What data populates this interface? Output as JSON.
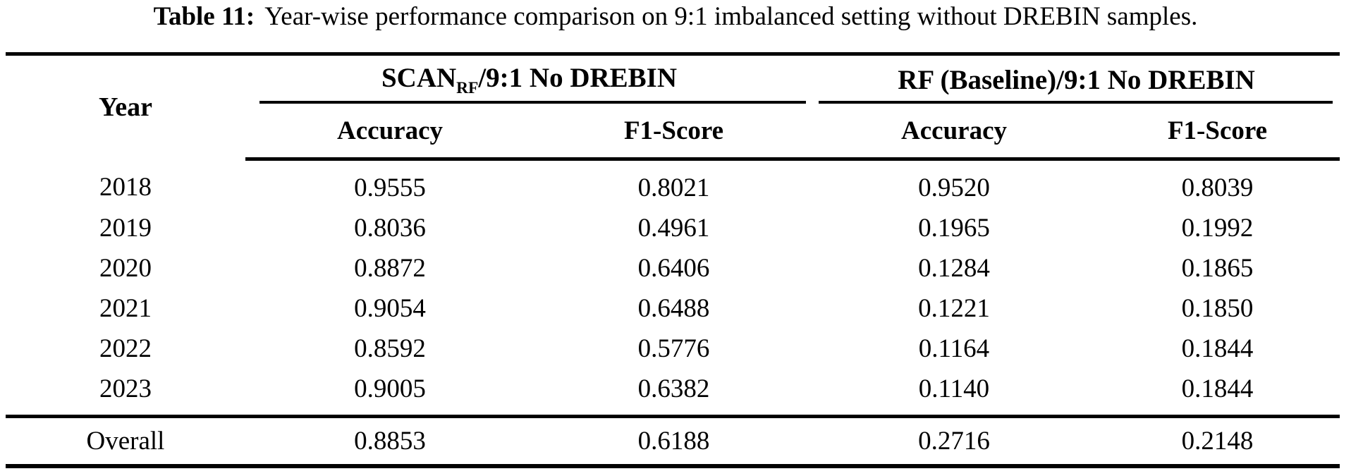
{
  "colors": {
    "text": "#000000",
    "background": "#ffffff",
    "rule": "#000000"
  },
  "caption": {
    "label": "Table 11:",
    "text": "Year-wise performance comparison on 9:1 imbalanced setting without DREBIN samples."
  },
  "table": {
    "year_header": "Year",
    "group1": {
      "prefix": "SCAN",
      "subscript": "RF",
      "suffix": "/9:1 No DREBIN"
    },
    "group2": {
      "label": "RF (Baseline)/9:1 No DREBIN"
    },
    "subheaders": [
      "Accuracy",
      "F1-Score",
      "Accuracy",
      "F1-Score"
    ],
    "rows": [
      {
        "year": "2018",
        "values": [
          "0.9555",
          "0.8021",
          "0.9520",
          "0.8039"
        ]
      },
      {
        "year": "2019",
        "values": [
          "0.8036",
          "0.4961",
          "0.1965",
          "0.1992"
        ]
      },
      {
        "year": "2020",
        "values": [
          "0.8872",
          "0.6406",
          "0.1284",
          "0.1865"
        ]
      },
      {
        "year": "2021",
        "values": [
          "0.9054",
          "0.6488",
          "0.1221",
          "0.1850"
        ]
      },
      {
        "year": "2022",
        "values": [
          "0.8592",
          "0.5776",
          "0.1164",
          "0.1844"
        ]
      },
      {
        "year": "2023",
        "values": [
          "0.9005",
          "0.6382",
          "0.1140",
          "0.1844"
        ]
      }
    ],
    "overall": {
      "label": "Overall",
      "values": [
        "0.8853",
        "0.6188",
        "0.2716",
        "0.2148"
      ]
    }
  },
  "chart_data": {
    "type": "table",
    "title": "Table 11: Year-wise performance comparison on 9:1 imbalanced setting without DREBIN samples.",
    "categories": [
      "2018",
      "2019",
      "2020",
      "2021",
      "2022",
      "2023",
      "Overall"
    ],
    "series": [
      {
        "name": "SCAN_RF/9:1 No DREBIN Accuracy",
        "values": [
          0.9555,
          0.8036,
          0.8872,
          0.9054,
          0.8592,
          0.9005,
          0.8853
        ]
      },
      {
        "name": "SCAN_RF/9:1 No DREBIN F1-Score",
        "values": [
          0.8021,
          0.4961,
          0.6406,
          0.6488,
          0.5776,
          0.6382,
          0.6188
        ]
      },
      {
        "name": "RF (Baseline)/9:1 No DREBIN Accuracy",
        "values": [
          0.952,
          0.1965,
          0.1284,
          0.1221,
          0.1164,
          0.114,
          0.2716
        ]
      },
      {
        "name": "RF (Baseline)/9:1 No DREBIN F1-Score",
        "values": [
          0.8039,
          0.1992,
          0.1865,
          0.185,
          0.1844,
          0.1844,
          0.2148
        ]
      }
    ]
  }
}
